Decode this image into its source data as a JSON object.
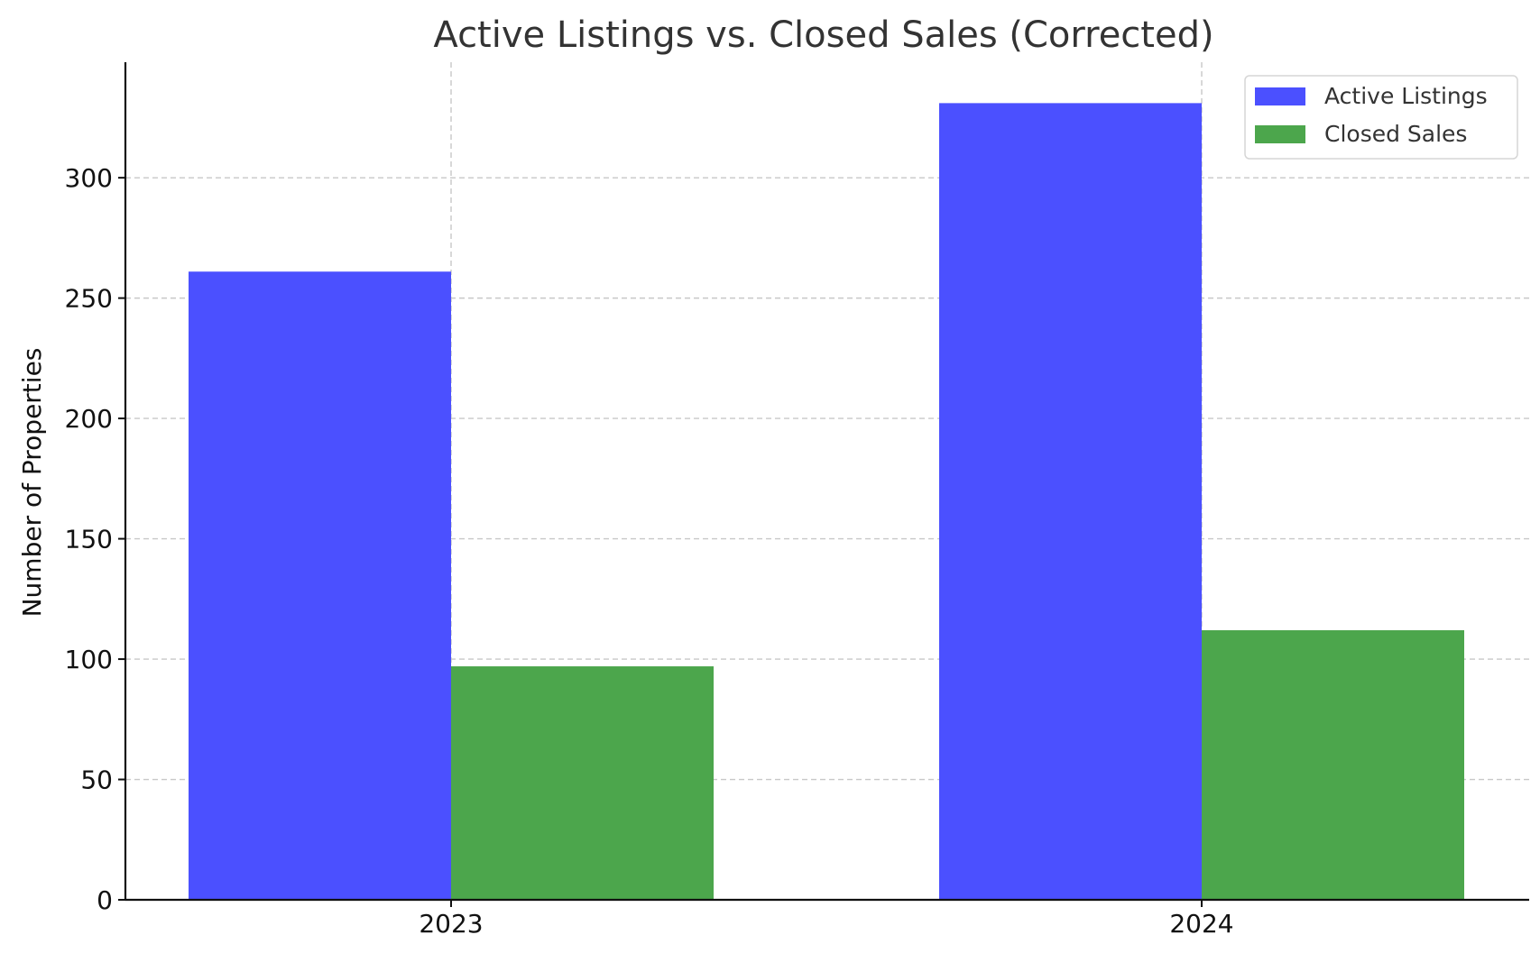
{
  "chart_data": {
    "type": "bar",
    "title": "Active Listings vs. Closed Sales (Corrected)",
    "xlabel": "",
    "ylabel": "Number of Properties",
    "categories": [
      "2023",
      "2024"
    ],
    "series": [
      {
        "name": "Active Listings",
        "color": "#4b50ff",
        "values": [
          261,
          331
        ]
      },
      {
        "name": "Closed Sales",
        "color": "#4ca64c",
        "values": [
          97,
          112
        ]
      }
    ],
    "ylim": [
      0,
      348
    ],
    "yticks": [
      0,
      50,
      100,
      150,
      200,
      250,
      300
    ],
    "grid": true,
    "legend": "top-right"
  }
}
